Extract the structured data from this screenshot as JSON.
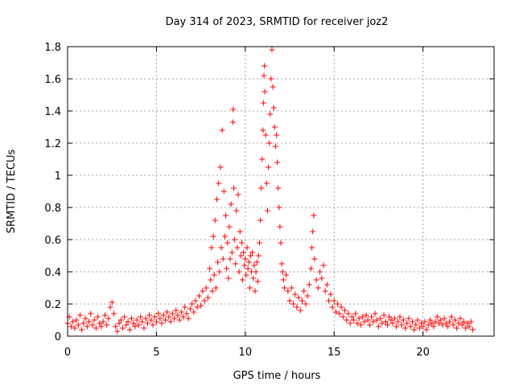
{
  "chart_data": {
    "type": "scatter",
    "title": "Day 314 of 2023, SRMTID for receiver joz2",
    "xlabel": "GPS time / hours",
    "ylabel": "SRMTID / TECUs",
    "xlim": [
      0,
      24
    ],
    "ylim": [
      0,
      1.8
    ],
    "xticks": [
      0,
      5,
      10,
      15,
      20
    ],
    "xtick_labels": [
      "0",
      "5",
      "10",
      "15",
      "20"
    ],
    "yticks": [
      0,
      0.2,
      0.4,
      0.6,
      0.8,
      1.0,
      1.2,
      1.4,
      1.6,
      1.8
    ],
    "ytick_labels": [
      "0",
      "0.2",
      "0.4",
      "0.6",
      "0.8",
      "1",
      "1.2",
      "1.4",
      "1.6",
      "1.8"
    ],
    "grid": true,
    "marker": "plus",
    "color": "#ff0000",
    "series": [
      {
        "name": "SRMTID",
        "points": [
          [
            0.0,
            0.08
          ],
          [
            0.1,
            0.12
          ],
          [
            0.2,
            0.06
          ],
          [
            0.3,
            0.09
          ],
          [
            0.4,
            0.05
          ],
          [
            0.5,
            0.1
          ],
          [
            0.6,
            0.07
          ],
          [
            0.7,
            0.13
          ],
          [
            0.8,
            0.04
          ],
          [
            0.9,
            0.08
          ],
          [
            1.0,
            0.11
          ],
          [
            1.1,
            0.06
          ],
          [
            1.2,
            0.09
          ],
          [
            1.3,
            0.14
          ],
          [
            1.4,
            0.07
          ],
          [
            1.5,
            0.1
          ],
          [
            1.6,
            0.05
          ],
          [
            1.7,
            0.12
          ],
          [
            1.8,
            0.08
          ],
          [
            1.9,
            0.06
          ],
          [
            2.0,
            0.09
          ],
          [
            2.1,
            0.13
          ],
          [
            2.2,
            0.07
          ],
          [
            2.3,
            0.11
          ],
          [
            2.4,
            0.18
          ],
          [
            2.5,
            0.21
          ],
          [
            2.6,
            0.14
          ],
          [
            2.7,
            0.06
          ],
          [
            2.8,
            0.03
          ],
          [
            2.9,
            0.08
          ],
          [
            3.0,
            0.1
          ],
          [
            3.1,
            0.05
          ],
          [
            3.2,
            0.12
          ],
          [
            3.3,
            0.07
          ],
          [
            3.4,
            0.09
          ],
          [
            3.5,
            0.04
          ],
          [
            3.6,
            0.11
          ],
          [
            3.7,
            0.08
          ],
          [
            3.8,
            0.06
          ],
          [
            3.9,
            0.1
          ],
          [
            4.0,
            0.07
          ],
          [
            4.1,
            0.12
          ],
          [
            4.2,
            0.09
          ],
          [
            4.3,
            0.05
          ],
          [
            4.4,
            0.11
          ],
          [
            4.5,
            0.08
          ],
          [
            4.6,
            0.13
          ],
          [
            4.7,
            0.1
          ],
          [
            4.8,
            0.07
          ],
          [
            4.9,
            0.12
          ],
          [
            5.0,
            0.09
          ],
          [
            5.1,
            0.14
          ],
          [
            5.2,
            0.11
          ],
          [
            5.3,
            0.08
          ],
          [
            5.4,
            0.13
          ],
          [
            5.5,
            0.1
          ],
          [
            5.6,
            0.15
          ],
          [
            5.7,
            0.12
          ],
          [
            5.8,
            0.09
          ],
          [
            5.9,
            0.14
          ],
          [
            6.0,
            0.11
          ],
          [
            6.1,
            0.16
          ],
          [
            6.2,
            0.13
          ],
          [
            6.3,
            0.1
          ],
          [
            6.4,
            0.15
          ],
          [
            6.5,
            0.12
          ],
          [
            6.6,
            0.18
          ],
          [
            6.7,
            0.14
          ],
          [
            6.8,
            0.11
          ],
          [
            6.9,
            0.17
          ],
          [
            7.0,
            0.2
          ],
          [
            7.1,
            0.15
          ],
          [
            7.2,
            0.22
          ],
          [
            7.3,
            0.18
          ],
          [
            7.4,
            0.25
          ],
          [
            7.5,
            0.19
          ],
          [
            7.6,
            0.28
          ],
          [
            7.7,
            0.22
          ],
          [
            7.8,
            0.3
          ],
          [
            7.9,
            0.24
          ],
          [
            8.0,
            0.42
          ],
          [
            8.05,
            0.35
          ],
          [
            8.1,
            0.55
          ],
          [
            8.15,
            0.28
          ],
          [
            8.2,
            0.62
          ],
          [
            8.25,
            0.38
          ],
          [
            8.3,
            0.72
          ],
          [
            8.35,
            0.3
          ],
          [
            8.4,
            0.85
          ],
          [
            8.45,
            0.46
          ],
          [
            8.5,
            0.95
          ],
          [
            8.55,
            0.4
          ],
          [
            8.6,
            1.05
          ],
          [
            8.65,
            0.55
          ],
          [
            8.7,
            1.28
          ],
          [
            8.75,
            0.48
          ],
          [
            8.8,
            0.9
          ],
          [
            8.85,
            0.62
          ],
          [
            8.9,
            0.75
          ],
          [
            8.95,
            0.42
          ],
          [
            9.0,
            0.58
          ],
          [
            9.05,
            0.36
          ],
          [
            9.1,
            0.68
          ],
          [
            9.15,
            0.48
          ],
          [
            9.2,
            0.82
          ],
          [
            9.25,
            0.52
          ],
          [
            9.3,
            1.33
          ],
          [
            9.32,
            1.41
          ],
          [
            9.35,
            0.92
          ],
          [
            9.4,
            0.6
          ],
          [
            9.45,
            0.45
          ],
          [
            9.5,
            0.78
          ],
          [
            9.55,
            0.55
          ],
          [
            9.6,
            0.88
          ],
          [
            9.65,
            0.4
          ],
          [
            9.7,
            0.65
          ],
          [
            9.75,
            0.5
          ],
          [
            9.8,
            0.58
          ],
          [
            9.85,
            0.35
          ],
          [
            9.9,
            0.52
          ],
          [
            9.95,
            0.44
          ],
          [
            10.0,
            0.48
          ],
          [
            10.05,
            0.38
          ],
          [
            10.1,
            0.55
          ],
          [
            10.15,
            0.42
          ],
          [
            10.2,
            0.46
          ],
          [
            10.25,
            0.3
          ],
          [
            10.3,
            0.5
          ],
          [
            10.35,
            0.4
          ],
          [
            10.4,
            0.52
          ],
          [
            10.45,
            0.36
          ],
          [
            10.5,
            0.44
          ],
          [
            10.55,
            0.28
          ],
          [
            10.6,
            0.4
          ],
          [
            10.65,
            0.46
          ],
          [
            10.7,
            0.34
          ],
          [
            10.75,
            0.5
          ],
          [
            10.8,
            0.58
          ],
          [
            10.85,
            0.72
          ],
          [
            10.9,
            0.92
          ],
          [
            10.95,
            1.1
          ],
          [
            11.0,
            1.28
          ],
          [
            11.02,
            1.45
          ],
          [
            11.05,
            1.62
          ],
          [
            11.08,
            1.68
          ],
          [
            11.1,
            1.52
          ],
          [
            11.15,
            1.25
          ],
          [
            11.2,
            0.95
          ],
          [
            11.25,
            0.78
          ],
          [
            11.3,
            1.05
          ],
          [
            11.35,
            1.2
          ],
          [
            11.4,
            1.38
          ],
          [
            11.45,
            1.6
          ],
          [
            11.5,
            1.78
          ],
          [
            11.55,
            1.55
          ],
          [
            11.6,
            1.42
          ],
          [
            11.65,
            1.3
          ],
          [
            11.7,
            1.18
          ],
          [
            11.75,
            1.25
          ],
          [
            11.8,
            1.08
          ],
          [
            11.85,
            0.92
          ],
          [
            11.9,
            0.8
          ],
          [
            11.95,
            0.68
          ],
          [
            12.0,
            0.58
          ],
          [
            12.05,
            0.45
          ],
          [
            12.1,
            0.4
          ],
          [
            12.15,
            0.35
          ],
          [
            12.2,
            0.3
          ],
          [
            12.3,
            0.38
          ],
          [
            12.4,
            0.28
          ],
          [
            12.5,
            0.22
          ],
          [
            12.6,
            0.3
          ],
          [
            12.7,
            0.2
          ],
          [
            12.8,
            0.26
          ],
          [
            12.9,
            0.18
          ],
          [
            13.0,
            0.24
          ],
          [
            13.1,
            0.16
          ],
          [
            13.2,
            0.22
          ],
          [
            13.3,
            0.28
          ],
          [
            13.4,
            0.2
          ],
          [
            13.5,
            0.25
          ],
          [
            13.6,
            0.32
          ],
          [
            13.7,
            0.42
          ],
          [
            13.75,
            0.55
          ],
          [
            13.8,
            0.65
          ],
          [
            13.85,
            0.75
          ],
          [
            13.9,
            0.48
          ],
          [
            14.0,
            0.35
          ],
          [
            14.1,
            0.3
          ],
          [
            14.2,
            0.4
          ],
          [
            14.3,
            0.36
          ],
          [
            14.4,
            0.44
          ],
          [
            14.5,
            0.28
          ],
          [
            14.6,
            0.32
          ],
          [
            14.7,
            0.22
          ],
          [
            14.8,
            0.26
          ],
          [
            14.9,
            0.18
          ],
          [
            15.0,
            0.22
          ],
          [
            15.1,
            0.15
          ],
          [
            15.2,
            0.2
          ],
          [
            15.3,
            0.14
          ],
          [
            15.4,
            0.18
          ],
          [
            15.5,
            0.12
          ],
          [
            15.6,
            0.16
          ],
          [
            15.7,
            0.1
          ],
          [
            15.8,
            0.14
          ],
          [
            15.9,
            0.08
          ],
          [
            16.0,
            0.12
          ],
          [
            16.1,
            0.1
          ],
          [
            16.2,
            0.14
          ],
          [
            16.3,
            0.08
          ],
          [
            16.4,
            0.11
          ],
          [
            16.5,
            0.07
          ],
          [
            16.6,
            0.12
          ],
          [
            16.7,
            0.09
          ],
          [
            16.8,
            0.13
          ],
          [
            16.9,
            0.1
          ],
          [
            17.0,
            0.07
          ],
          [
            17.1,
            0.12
          ],
          [
            17.2,
            0.09
          ],
          [
            17.3,
            0.14
          ],
          [
            17.4,
            0.1
          ],
          [
            17.5,
            0.06
          ],
          [
            17.6,
            0.11
          ],
          [
            17.7,
            0.08
          ],
          [
            17.8,
            0.13
          ],
          [
            17.9,
            0.09
          ],
          [
            18.0,
            0.07
          ],
          [
            18.1,
            0.12
          ],
          [
            18.2,
            0.1
          ],
          [
            18.3,
            0.08
          ],
          [
            18.4,
            0.11
          ],
          [
            18.5,
            0.06
          ],
          [
            18.6,
            0.09
          ],
          [
            18.7,
            0.12
          ],
          [
            18.8,
            0.07
          ],
          [
            18.9,
            0.1
          ],
          [
            19.0,
            0.05
          ],
          [
            19.1,
            0.08
          ],
          [
            19.2,
            0.11
          ],
          [
            19.3,
            0.06
          ],
          [
            19.4,
            0.09
          ],
          [
            19.5,
            0.04
          ],
          [
            19.6,
            0.07
          ],
          [
            19.7,
            0.1
          ],
          [
            19.8,
            0.05
          ],
          [
            19.9,
            0.08
          ],
          [
            20.0,
            0.06
          ],
          [
            20.1,
            0.09
          ],
          [
            20.2,
            0.04
          ],
          [
            20.3,
            0.07
          ],
          [
            20.4,
            0.1
          ],
          [
            20.5,
            0.08
          ],
          [
            20.6,
            0.06
          ],
          [
            20.7,
            0.09
          ],
          [
            20.8,
            0.12
          ],
          [
            20.9,
            0.08
          ],
          [
            21.0,
            0.1
          ],
          [
            21.1,
            0.07
          ],
          [
            21.2,
            0.11
          ],
          [
            21.3,
            0.08
          ],
          [
            21.4,
            0.06
          ],
          [
            21.5,
            0.09
          ],
          [
            21.6,
            0.12
          ],
          [
            21.7,
            0.07
          ],
          [
            21.8,
            0.1
          ],
          [
            21.9,
            0.05
          ],
          [
            22.0,
            0.08
          ],
          [
            22.1,
            0.11
          ],
          [
            22.2,
            0.07
          ],
          [
            22.3,
            0.09
          ],
          [
            22.4,
            0.05
          ],
          [
            22.5,
            0.08
          ],
          [
            22.6,
            0.06
          ],
          [
            22.7,
            0.09
          ],
          [
            22.8,
            0.04
          ]
        ]
      }
    ]
  }
}
